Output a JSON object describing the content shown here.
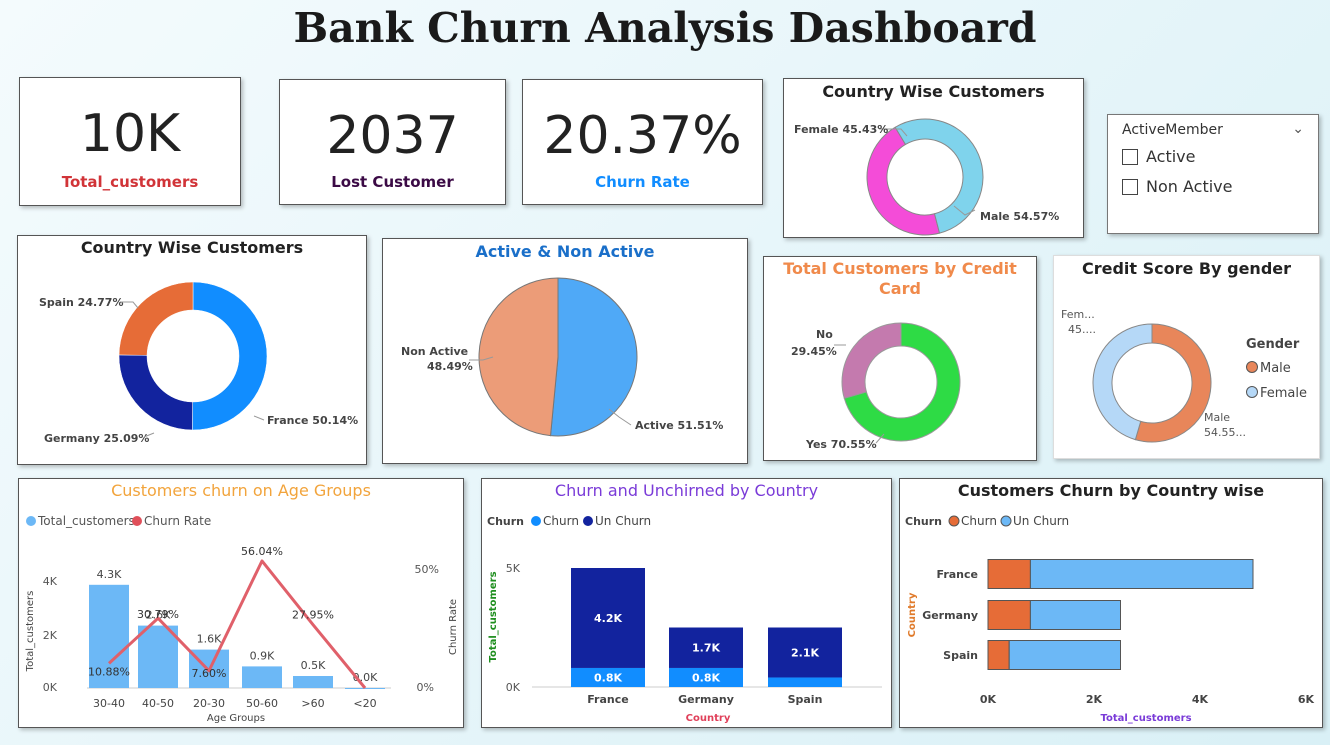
{
  "title": "Bank Churn Analysis Dashboard",
  "kpis": [
    {
      "value": "10K",
      "label": "Total_customers",
      "color": "#d13438"
    },
    {
      "value": "2037",
      "label": "Lost Customer",
      "color": "#3b0a45"
    },
    {
      "value": "20.37%",
      "label": "Churn Rate",
      "color": "#118dff"
    }
  ],
  "slicer": {
    "title": "ActiveMember",
    "options": [
      "Active",
      "Non Active"
    ]
  },
  "gender_donut": {
    "title": "Country Wise Customers",
    "female_label": "Female 45.43%",
    "male_label": "Male 54.57%"
  },
  "country_donut": {
    "title": "Country Wise Customers",
    "spain_label": "Spain 24.77%",
    "france_label": "France 50.14%",
    "germany_label": "Germany 25.09%"
  },
  "active_pie": {
    "title": "Active & Non Active",
    "nonactive_label1": "Non Active",
    "nonactive_label2": "48.49%",
    "active_label": "Active 51.51%"
  },
  "credit_card": {
    "title1": "Total Customers by Credit",
    "title2": "Card",
    "no_label1": "No",
    "no_label2": "29.45%",
    "yes_label": "Yes 70.55%"
  },
  "credit_gender": {
    "title": "Credit Score By gender",
    "fem1": "Fem...",
    "fem2": "45....",
    "male1": "Male",
    "male2": "54.55...",
    "legend_title": "Gender",
    "legend_male": "Male",
    "legend_female": "Female"
  },
  "age_chart": {
    "title": "Customers churn on Age Groups",
    "legend_total": "Total_customers",
    "legend_rate": "Churn Rate",
    "ylabel": "Total_customers",
    "y2label": "Churn Rate",
    "xlabel": "Age Groups",
    "yticks": [
      "4K",
      "2K",
      "0K"
    ],
    "y2ticks": [
      "50%",
      "0%"
    ]
  },
  "country_churn": {
    "title": "Churn and Unchirned by Country",
    "legend_title": "Churn",
    "legend_churn": "Churn",
    "legend_unchurn": "Un Churn",
    "ylabel": "Total_customers",
    "xlabel": "Country",
    "yticks": [
      "5K",
      "0K"
    ]
  },
  "country_hbar": {
    "title": "Customers Churn by Country wise",
    "legend_title": "Churn",
    "legend_churn": "Churn",
    "legend_unchurn": "Un Churn",
    "ylabel": "Country",
    "xlabel": "Total_customers",
    "xticks": [
      "0K",
      "2K",
      "4K",
      "6K"
    ]
  },
  "chart_data": [
    {
      "type": "pie",
      "title": "Country Wise Customers",
      "categories": [
        "Female",
        "Male"
      ],
      "values": [
        45.43,
        54.57
      ],
      "colors": [
        "#f44cd8",
        "#7fd3ec"
      ]
    },
    {
      "type": "pie",
      "title": "Country Wise Customers",
      "categories": [
        "France",
        "Germany",
        "Spain"
      ],
      "values": [
        50.14,
        25.09,
        24.77
      ],
      "colors": [
        "#118dff",
        "#12239e",
        "#e66c37"
      ]
    },
    {
      "type": "pie",
      "title": "Active & Non Active",
      "categories": [
        "Active",
        "Non Active"
      ],
      "values": [
        51.51,
        48.49
      ],
      "colors": [
        "#4fa9f7",
        "#ec9c78"
      ]
    },
    {
      "type": "pie",
      "title": "Total Customers by Credit Card",
      "categories": [
        "Yes",
        "No"
      ],
      "values": [
        70.55,
        29.45
      ],
      "colors": [
        "#2edb45",
        "#c47aae"
      ]
    },
    {
      "type": "pie",
      "title": "Credit Score By gender",
      "categories": [
        "Male",
        "Female"
      ],
      "values": [
        54.55,
        45.45
      ],
      "colors": [
        "#e8865a",
        "#b5d8f7"
      ]
    },
    {
      "type": "bar",
      "title": "Customers churn on Age Groups",
      "categories": [
        "30-40",
        "40-50",
        "20-30",
        "50-60",
        ">60",
        "<20"
      ],
      "series": [
        {
          "name": "Total_customers",
          "values": [
            4.3,
            2.6,
            1.6,
            0.9,
            0.5,
            0.0
          ],
          "labels": [
            "4.3K",
            "2.6K",
            "1.6K",
            "0.9K",
            "0.5K",
            "0.0K"
          ]
        },
        {
          "name": "Churn Rate",
          "values": [
            10.88,
            30.79,
            7.6,
            56.04,
            27.95,
            0.0
          ],
          "labels": [
            "10.88%",
            "30.79%",
            "7.60%",
            "56.04%",
            "27.95%",
            ""
          ]
        }
      ],
      "ylim": [
        0,
        5
      ],
      "y2lim": [
        0,
        60
      ]
    },
    {
      "type": "bar",
      "title": "Churn and Unchirned by Country",
      "categories": [
        "France",
        "Germany",
        "Spain"
      ],
      "series": [
        {
          "name": "Churn",
          "values": [
            0.8,
            0.8,
            0.4
          ],
          "labels": [
            "0.8K",
            "0.8K",
            ""
          ]
        },
        {
          "name": "Un Churn",
          "values": [
            4.2,
            1.7,
            2.1
          ],
          "labels": [
            "4.2K",
            "1.7K",
            "2.1K"
          ]
        }
      ],
      "ylim": [
        0,
        5
      ]
    },
    {
      "type": "bar",
      "title": "Customers Churn by Country wise",
      "orientation": "horizontal",
      "categories": [
        "France",
        "Germany",
        "Spain"
      ],
      "series": [
        {
          "name": "Churn",
          "values": [
            0.8,
            0.8,
            0.4
          ]
        },
        {
          "name": "Un Churn",
          "values": [
            4.2,
            1.7,
            2.1
          ]
        }
      ],
      "xlim": [
        0,
        6
      ]
    }
  ]
}
